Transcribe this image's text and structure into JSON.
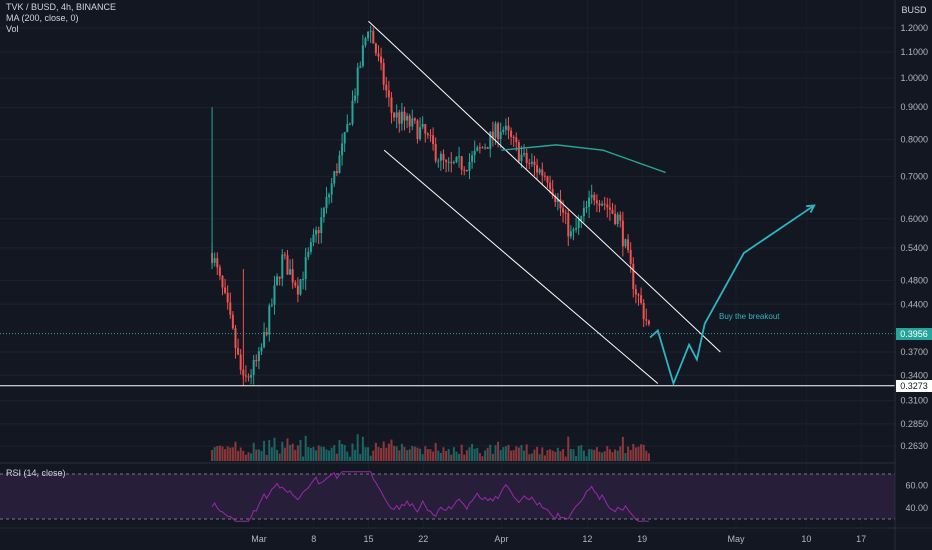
{
  "legend": {
    "symbol_line": "TVK / BUSD, 4h, BINANCE",
    "ma_line": "MA (200, close, 0)",
    "vol_line": "Vol"
  },
  "rsi_legend": "RSI (14, close)",
  "annotation": "Buy the breakout",
  "price_tags": {
    "current": "0.3956",
    "support": "0.3273",
    "currency": "BUSD"
  },
  "colors": {
    "background": "#131722",
    "up": "#26a69a",
    "down": "#ef5350",
    "ma": "#26a69a",
    "projection": "#2cb5c0",
    "channel": "#ffffff",
    "rsi_line": "#9c27b0",
    "rsi_band": "#2a1f3d"
  },
  "chart_data": {
    "type": "candlestick",
    "title": "TVK / BUSD, 4h, BINANCE",
    "y_axis": {
      "scale": "log",
      "unit": "BUSD",
      "ticks": [
        "1.2000",
        "1.1000",
        "1.0000",
        "0.9000",
        "0.8000",
        "0.7000",
        "0.6000",
        "0.5400",
        "0.4800",
        "0.4400",
        "0.3700",
        "0.3400",
        "0.3100",
        "0.2850",
        "0.2630"
      ]
    },
    "x_axis": {
      "ticks": [
        "Mar",
        "8",
        "15",
        "22",
        "Apr",
        "12",
        "19",
        "May",
        "10",
        "17"
      ]
    },
    "price_path": [
      {
        "date": "Feb 23",
        "price": 0.53
      },
      {
        "date": "Feb 25",
        "price": 0.43
      },
      {
        "date": "Feb 27",
        "price": 0.33
      },
      {
        "date": "Mar 1",
        "price": 0.36
      },
      {
        "date": "Mar 4",
        "price": 0.52
      },
      {
        "date": "Mar 6",
        "price": 0.47
      },
      {
        "date": "Mar 9",
        "price": 0.6
      },
      {
        "date": "Mar 12",
        "price": 0.8
      },
      {
        "date": "Mar 15",
        "price": 1.22
      },
      {
        "date": "Mar 18",
        "price": 0.88
      },
      {
        "date": "Mar 22",
        "price": 0.82
      },
      {
        "date": "Mar 25",
        "price": 0.72
      },
      {
        "date": "Mar 28",
        "price": 0.74
      },
      {
        "date": "Apr 1",
        "price": 0.84
      },
      {
        "date": "Apr 4",
        "price": 0.74
      },
      {
        "date": "Apr 7",
        "price": 0.7
      },
      {
        "date": "Apr 10",
        "price": 0.56
      },
      {
        "date": "Apr 13",
        "price": 0.66
      },
      {
        "date": "Apr 16",
        "price": 0.6
      },
      {
        "date": "Apr 18",
        "price": 0.47
      },
      {
        "date": "Apr 20",
        "price": 0.4
      }
    ],
    "moving_average": {
      "name": "MA (200, close, 0)",
      "points": [
        {
          "date": "Apr 1",
          "price": 0.77
        },
        {
          "date": "Apr 8",
          "price": 0.785
        },
        {
          "date": "Apr 14",
          "price": 0.77
        },
        {
          "date": "Apr 22",
          "price": 0.71
        }
      ]
    },
    "channel": {
      "upper": [
        {
          "date": "Mar 15",
          "price": 1.23
        },
        {
          "date": "Apr 29",
          "price": 0.37
        }
      ],
      "lower": [
        {
          "date": "Mar 17",
          "price": 0.77
        },
        {
          "date": "Apr 21",
          "price": 0.33
        }
      ]
    },
    "projection": [
      {
        "date": "Apr 20",
        "price": 0.39
      },
      {
        "date": "Apr 21",
        "price": 0.4
      },
      {
        "date": "Apr 23",
        "price": 0.33
      },
      {
        "date": "Apr 25",
        "price": 0.38
      },
      {
        "date": "Apr 26",
        "price": 0.36
      },
      {
        "date": "Apr 27",
        "price": 0.41
      },
      {
        "date": "May 2",
        "price": 0.53
      },
      {
        "date": "May 11",
        "price": 0.63
      }
    ],
    "horizontal_lines": [
      {
        "price": 0.3273,
        "style": "solid"
      },
      {
        "price": 0.3956,
        "style": "dotted"
      }
    ],
    "rsi": {
      "name": "RSI (14, close)",
      "ticks": [
        "60.00",
        "40.00"
      ],
      "levels": [
        70,
        30
      ]
    }
  }
}
